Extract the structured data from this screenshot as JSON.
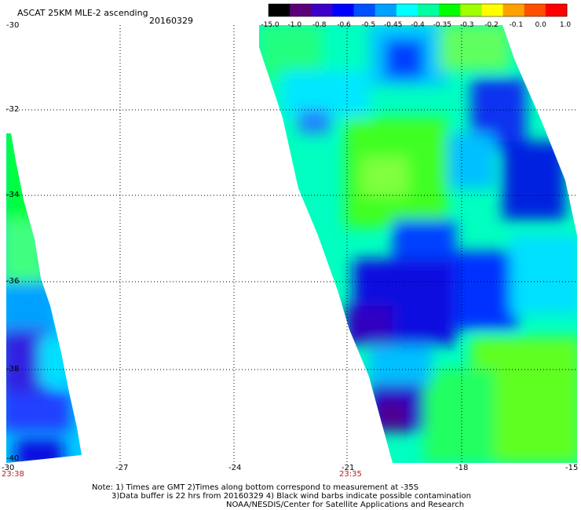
{
  "title": "ASCAT 25KM MLE-2 ascending",
  "date": "20160329",
  "colorbar": {
    "labels": [
      "-15.0",
      "-1.0",
      "-0.8",
      "-0.6",
      "-0.5",
      "-0.45",
      "-0.4",
      "-0.35",
      "-0.3",
      "-0.2",
      "-0.1",
      "0.0",
      "1.0"
    ],
    "colors": [
      "#000000",
      "#5a0078",
      "#3c00c8",
      "#0000ff",
      "#0050ff",
      "#00a0ff",
      "#00ffff",
      "#00ffa0",
      "#00ff00",
      "#a0ff00",
      "#ffff00",
      "#ffa000",
      "#ff5000",
      "#ff0000"
    ]
  },
  "axes": {
    "lat_labels": [
      "-30",
      "-32",
      "-34",
      "-36",
      "-38",
      "-40"
    ],
    "lon_labels": [
      "-30",
      "-27",
      "-24",
      "-21",
      "-18",
      "-15"
    ]
  },
  "swath_times": [
    "23:38",
    "23:35"
  ],
  "notes": [
    "Note: 1) Times are GMT 2)Times along bottom correspond to measurement at -35S",
    "3)Data buffer is 22 hrs from 20160329 4) Black wind barbs indicate possible contamination",
    "NOAA/NESDIS/Center for Satellite Applications and Research"
  ]
}
